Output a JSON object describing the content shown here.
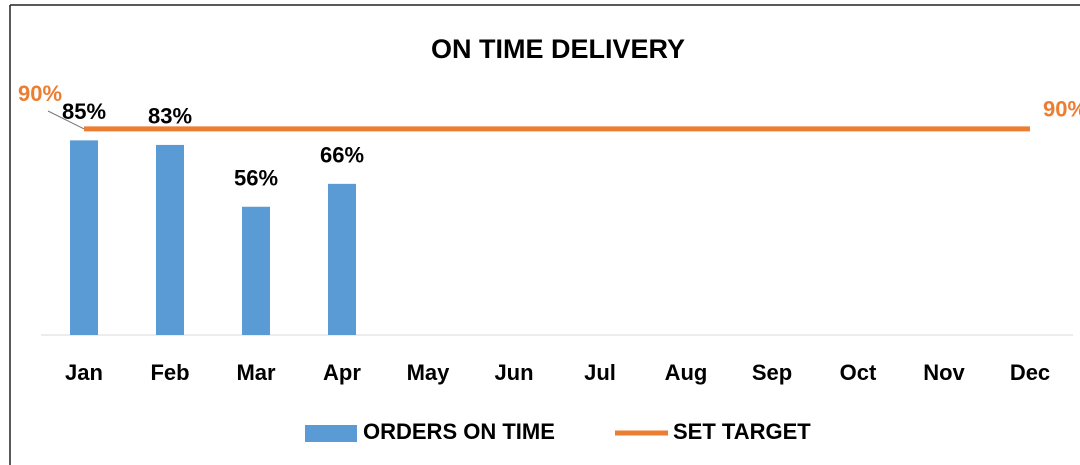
{
  "chart_data": {
    "type": "bar-line",
    "title": "ON TIME DELIVERY",
    "categories": [
      "Jan",
      "Feb",
      "Mar",
      "Apr",
      "May",
      "Jun",
      "Jul",
      "Aug",
      "Sep",
      "Oct",
      "Nov",
      "Dec"
    ],
    "series": [
      {
        "name": "ORDERS ON TIME",
        "type": "bar",
        "color": "#5b9bd5",
        "values": [
          85,
          83,
          56,
          66,
          null,
          null,
          null,
          null,
          null,
          null,
          null,
          null
        ],
        "value_labels": [
          "85%",
          "83%",
          "56%",
          "66%",
          null,
          null,
          null,
          null,
          null,
          null,
          null,
          null
        ]
      },
      {
        "name": "SET TARGET",
        "type": "line",
        "color": "#ed7d31",
        "values": [
          90,
          90,
          90,
          90,
          90,
          90,
          90,
          90,
          90,
          90,
          90,
          90
        ],
        "value_labels": [
          "90%",
          null,
          null,
          null,
          null,
          null,
          null,
          null,
          null,
          null,
          null,
          "90%"
        ]
      }
    ],
    "ylim": [
      0,
      100
    ],
    "legend": "bottom"
  }
}
